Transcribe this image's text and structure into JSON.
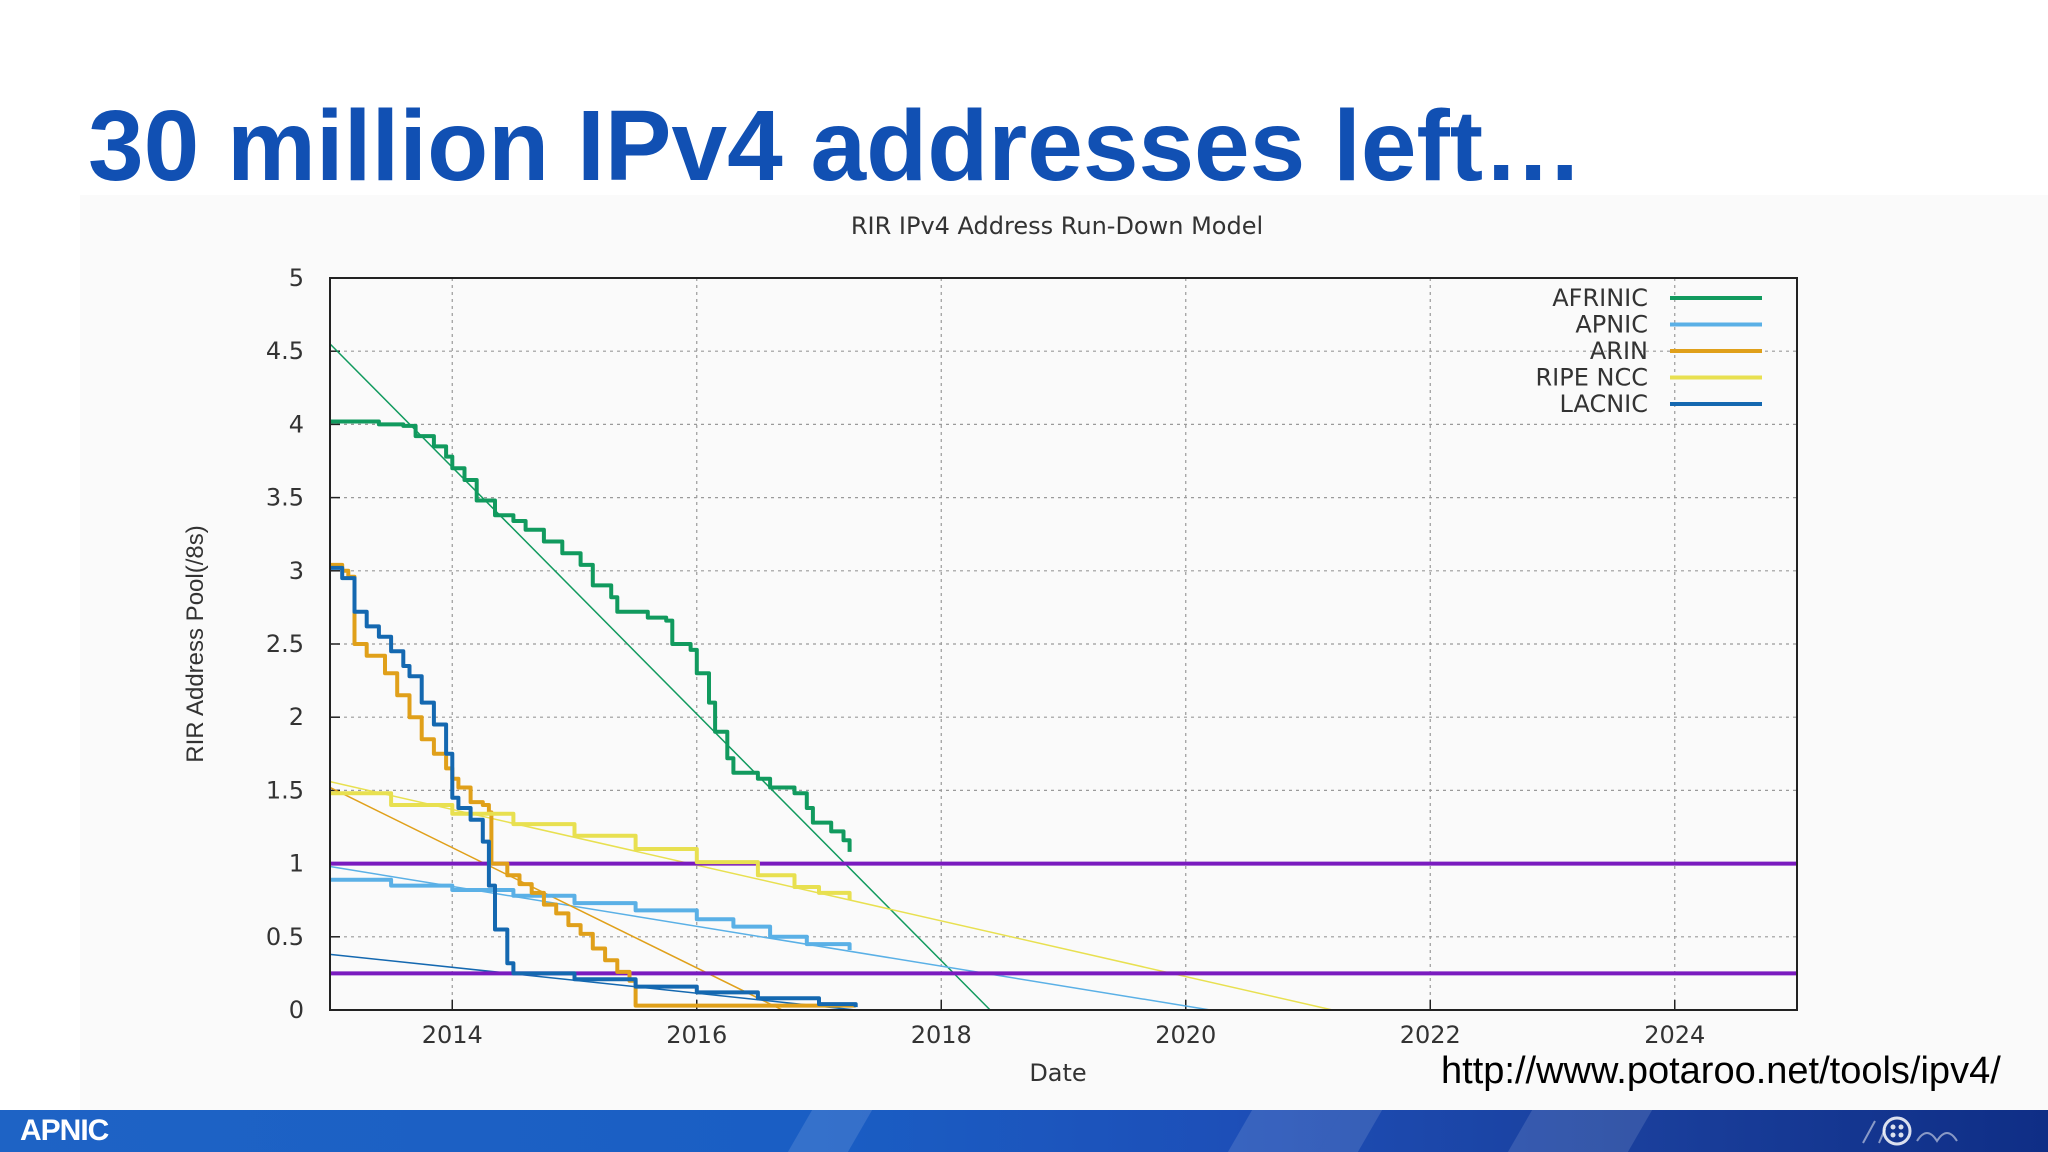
{
  "slide": {
    "title": "30 million IPv4 addresses left…",
    "source_url": "http://www.potaroo.net/tools/ipv4/",
    "footer_logo": "APNIC"
  },
  "colors": {
    "title": "#1150b3",
    "threshold": "#7a1bbf",
    "AFRINIC": "#119a5e",
    "APNIC": "#5ab0e6",
    "ARIN": "#e0a01a",
    "RIPE NCC": "#e8e050",
    "LACNIC": "#1468b0",
    "footer": "#1e63c5"
  },
  "chart_data": {
    "type": "line",
    "title": "RIR IPv4 Address Run-Down Model",
    "xlabel": "Date",
    "ylabel": "RIR Address Pool(/8s)",
    "xlim": [
      2013.0,
      2025.0
    ],
    "ylim": [
      0,
      5
    ],
    "x_ticks": [
      2014,
      2016,
      2018,
      2020,
      2022,
      2024
    ],
    "y_ticks": [
      "0",
      "0.5",
      "1",
      "1.5",
      "2",
      "2.5",
      "3",
      "3.5",
      "4",
      "4.5",
      "5"
    ],
    "grid": true,
    "legend_position": "top-right",
    "series": [
      {
        "name": "AFRINIC",
        "color": "#119a5e",
        "points": [
          [
            2013.0,
            4.02
          ],
          [
            2013.2,
            4.02
          ],
          [
            2013.4,
            4.0
          ],
          [
            2013.6,
            3.99
          ],
          [
            2013.7,
            3.92
          ],
          [
            2013.85,
            3.85
          ],
          [
            2013.95,
            3.78
          ],
          [
            2014.0,
            3.7
          ],
          [
            2014.1,
            3.62
          ],
          [
            2014.2,
            3.48
          ],
          [
            2014.35,
            3.38
          ],
          [
            2014.5,
            3.34
          ],
          [
            2014.6,
            3.28
          ],
          [
            2014.75,
            3.2
          ],
          [
            2014.9,
            3.12
          ],
          [
            2015.05,
            3.04
          ],
          [
            2015.15,
            2.9
          ],
          [
            2015.3,
            2.82
          ],
          [
            2015.35,
            2.72
          ],
          [
            2015.6,
            2.68
          ],
          [
            2015.75,
            2.66
          ],
          [
            2015.8,
            2.5
          ],
          [
            2015.95,
            2.46
          ],
          [
            2016.0,
            2.3
          ],
          [
            2016.1,
            2.1
          ],
          [
            2016.15,
            1.9
          ],
          [
            2016.25,
            1.72
          ],
          [
            2016.3,
            1.62
          ],
          [
            2016.5,
            1.58
          ],
          [
            2016.6,
            1.52
          ],
          [
            2016.8,
            1.48
          ],
          [
            2016.9,
            1.38
          ],
          [
            2016.95,
            1.28
          ],
          [
            2017.1,
            1.22
          ],
          [
            2017.2,
            1.16
          ],
          [
            2017.25,
            1.08
          ]
        ]
      },
      {
        "name": "APNIC",
        "color": "#5ab0e6",
        "points": [
          [
            2013.0,
            0.89
          ],
          [
            2013.5,
            0.85
          ],
          [
            2014.0,
            0.82
          ],
          [
            2014.5,
            0.78
          ],
          [
            2015.0,
            0.73
          ],
          [
            2015.5,
            0.68
          ],
          [
            2016.0,
            0.62
          ],
          [
            2016.3,
            0.57
          ],
          [
            2016.6,
            0.5
          ],
          [
            2016.9,
            0.45
          ],
          [
            2017.25,
            0.41
          ]
        ]
      },
      {
        "name": "ARIN",
        "color": "#e0a01a",
        "points": [
          [
            2013.0,
            3.04
          ],
          [
            2013.1,
            3.0
          ],
          [
            2013.15,
            2.96
          ],
          [
            2013.2,
            2.5
          ],
          [
            2013.3,
            2.42
          ],
          [
            2013.45,
            2.3
          ],
          [
            2013.55,
            2.15
          ],
          [
            2013.65,
            2.0
          ],
          [
            2013.75,
            1.85
          ],
          [
            2013.85,
            1.75
          ],
          [
            2013.95,
            1.65
          ],
          [
            2014.0,
            1.58
          ],
          [
            2014.05,
            1.52
          ],
          [
            2014.15,
            1.42
          ],
          [
            2014.25,
            1.4
          ],
          [
            2014.3,
            1.35
          ],
          [
            2014.32,
            1.0
          ],
          [
            2014.45,
            0.92
          ],
          [
            2014.55,
            0.86
          ],
          [
            2014.65,
            0.8
          ],
          [
            2014.75,
            0.72
          ],
          [
            2014.85,
            0.66
          ],
          [
            2014.95,
            0.58
          ],
          [
            2015.05,
            0.52
          ],
          [
            2015.15,
            0.42
          ],
          [
            2015.25,
            0.34
          ],
          [
            2015.35,
            0.26
          ],
          [
            2015.45,
            0.2
          ],
          [
            2015.5,
            0.03
          ],
          [
            2016.0,
            0.03
          ],
          [
            2016.5,
            0.03
          ],
          [
            2017.0,
            0.03
          ],
          [
            2017.3,
            0.03
          ]
        ]
      },
      {
        "name": "RIPE NCC",
        "color": "#e8e050",
        "points": [
          [
            2013.0,
            1.48
          ],
          [
            2013.5,
            1.4
          ],
          [
            2014.0,
            1.34
          ],
          [
            2014.5,
            1.27
          ],
          [
            2015.0,
            1.19
          ],
          [
            2015.5,
            1.1
          ],
          [
            2016.0,
            1.01
          ],
          [
            2016.5,
            0.92
          ],
          [
            2016.8,
            0.84
          ],
          [
            2017.0,
            0.8
          ],
          [
            2017.25,
            0.75
          ]
        ]
      },
      {
        "name": "LACNIC",
        "color": "#1468b0",
        "points": [
          [
            2013.0,
            3.02
          ],
          [
            2013.1,
            2.95
          ],
          [
            2013.2,
            2.72
          ],
          [
            2013.3,
            2.62
          ],
          [
            2013.4,
            2.55
          ],
          [
            2013.5,
            2.45
          ],
          [
            2013.6,
            2.35
          ],
          [
            2013.65,
            2.28
          ],
          [
            2013.75,
            2.1
          ],
          [
            2013.85,
            1.95
          ],
          [
            2013.95,
            1.75
          ],
          [
            2014.0,
            1.45
          ],
          [
            2014.05,
            1.38
          ],
          [
            2014.15,
            1.3
          ],
          [
            2014.25,
            1.15
          ],
          [
            2014.3,
            0.85
          ],
          [
            2014.35,
            0.55
          ],
          [
            2014.45,
            0.32
          ],
          [
            2014.5,
            0.25
          ],
          [
            2015.0,
            0.21
          ],
          [
            2015.5,
            0.16
          ],
          [
            2016.0,
            0.12
          ],
          [
            2016.5,
            0.08
          ],
          [
            2017.0,
            0.04
          ],
          [
            2017.3,
            0.02
          ]
        ]
      }
    ],
    "trend_lines": [
      {
        "color": "#119a5e",
        "points": [
          [
            2013.0,
            4.55
          ],
          [
            2018.4,
            0.0
          ]
        ]
      },
      {
        "color": "#5ab0e6",
        "points": [
          [
            2013.0,
            0.98
          ],
          [
            2020.2,
            0.0
          ]
        ]
      },
      {
        "color": "#e0a01a",
        "points": [
          [
            2013.0,
            1.52
          ],
          [
            2016.7,
            0.0
          ]
        ]
      },
      {
        "color": "#e8e050",
        "points": [
          [
            2013.0,
            1.56
          ],
          [
            2021.2,
            0.0
          ]
        ]
      },
      {
        "color": "#1468b0",
        "points": [
          [
            2013.0,
            0.38
          ],
          [
            2017.3,
            0.0
          ]
        ]
      }
    ],
    "thresholds": [
      {
        "y": 1.0,
        "color": "#7a1bbf"
      },
      {
        "y": 0.25,
        "color": "#7a1bbf"
      }
    ]
  }
}
